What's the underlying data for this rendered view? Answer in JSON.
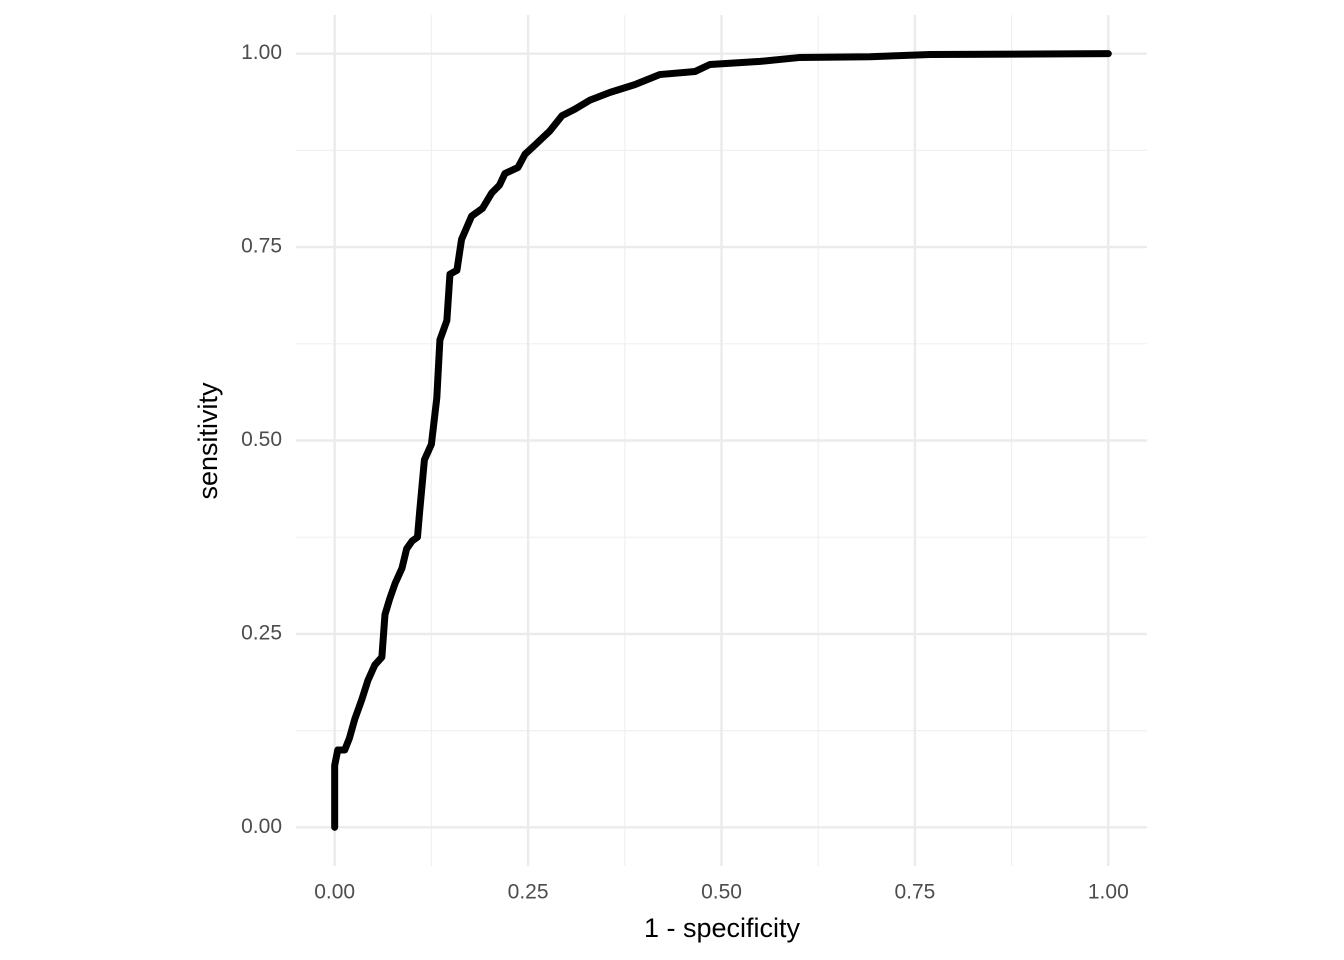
{
  "chart_data": {
    "type": "line",
    "x_label": "1 - specificity",
    "y_label": "sensitivity",
    "x": [
      0,
      0,
      0.004,
      0.013,
      0.019,
      0.026,
      0.035,
      0.043,
      0.052,
      0.061,
      0.065,
      0.071,
      0.078,
      0.087,
      0.093,
      0.1,
      0.107,
      0.11,
      0.116,
      0.125,
      0.132,
      0.136,
      0.145,
      0.149,
      0.158,
      0.164,
      0.177,
      0.191,
      0.203,
      0.213,
      0.22,
      0.237,
      0.246,
      0.259,
      0.278,
      0.294,
      0.31,
      0.33,
      0.356,
      0.388,
      0.42,
      0.466,
      0.485,
      0.55,
      0.6,
      0.692,
      0.77,
      1
    ],
    "values": [
      0,
      0.08,
      0.1,
      0.1,
      0.115,
      0.14,
      0.165,
      0.19,
      0.21,
      0.22,
      0.275,
      0.295,
      0.315,
      0.335,
      0.36,
      0.37,
      0.375,
      0.41,
      0.475,
      0.495,
      0.555,
      0.63,
      0.655,
      0.715,
      0.72,
      0.76,
      0.79,
      0.8,
      0.82,
      0.83,
      0.845,
      0.853,
      0.87,
      0.882,
      0.9,
      0.92,
      0.928,
      0.94,
      0.95,
      0.96,
      0.973,
      0.977,
      0.986,
      0.99,
      0.995,
      0.996,
      0.999,
      1
    ],
    "color": "#000000",
    "xlim": [
      -0.05,
      1.05
    ],
    "ylim": [
      -0.05,
      1.05
    ],
    "xticks": [
      {
        "value": 0,
        "label": "0.00"
      },
      {
        "value": 0.25,
        "label": "0.25"
      },
      {
        "value": 0.5,
        "label": "0.50"
      },
      {
        "value": 0.75,
        "label": "0.75"
      },
      {
        "value": 1,
        "label": "1.00"
      }
    ],
    "yticks": [
      {
        "value": 0,
        "label": "0.00"
      },
      {
        "value": 0.25,
        "label": "0.25"
      },
      {
        "value": 0.5,
        "label": "0.50"
      },
      {
        "value": 0.75,
        "label": "0.75"
      },
      {
        "value": 1,
        "label": "1.00"
      }
    ],
    "grid": true,
    "minor_grid": true
  }
}
